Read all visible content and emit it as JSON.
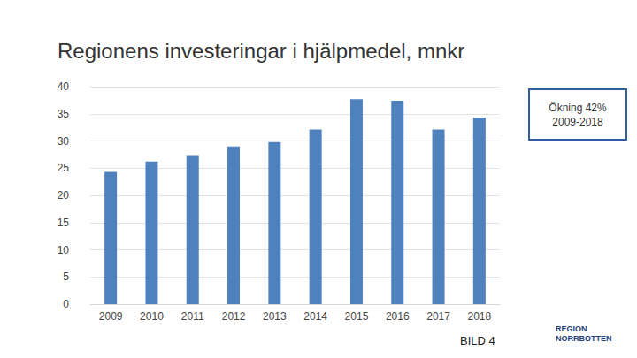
{
  "chart_data": {
    "type": "bar",
    "title": "Regionens investeringar i hjälpmedel, mnkr",
    "categories": [
      "2009",
      "2010",
      "2011",
      "2012",
      "2013",
      "2014",
      "2015",
      "2016",
      "2017",
      "2018"
    ],
    "values": [
      24.3,
      26.2,
      27.4,
      29.0,
      29.8,
      32.1,
      37.7,
      37.4,
      32.1,
      34.3
    ],
    "color": "#4f81bd",
    "ylim": [
      0,
      40
    ],
    "yticks": [
      0,
      5,
      10,
      15,
      20,
      25,
      30,
      35,
      40
    ],
    "grid": true,
    "annotations": [
      "Ökning 42%\n2009-2018",
      "BILD 4",
      "REGION\nNORRBOTTEN"
    ]
  }
}
